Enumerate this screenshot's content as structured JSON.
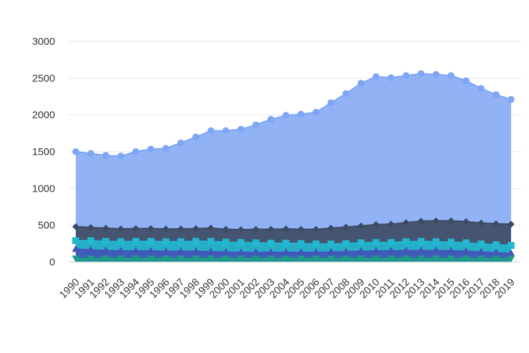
{
  "chart_data": {
    "type": "area",
    "stacked": false,
    "title": "",
    "xlabel": "",
    "ylabel": "",
    "ylim": [
      0,
      3000
    ],
    "yticks": [
      0,
      500,
      1000,
      1500,
      2000,
      2500,
      3000
    ],
    "grid": true,
    "legend": "none",
    "categories": [
      "1990",
      "1991",
      "1992",
      "1993",
      "1994",
      "1995",
      "1996",
      "1997",
      "1998",
      "1999",
      "2000",
      "2001",
      "2002",
      "2003",
      "2004",
      "2005",
      "2006",
      "2007",
      "2008",
      "2009",
      "2010",
      "2011",
      "2012",
      "2013",
      "2014",
      "2015",
      "2016",
      "2017",
      "2018",
      "2019"
    ],
    "series": [
      {
        "color": "#7ea6f5",
        "marker": "circle",
        "values": [
          1500,
          1475,
          1450,
          1440,
          1500,
          1535,
          1545,
          1620,
          1700,
          1785,
          1785,
          1805,
          1865,
          1940,
          1995,
          2010,
          2035,
          2165,
          2290,
          2430,
          2520,
          2505,
          2535,
          2560,
          2550,
          2535,
          2465,
          2360,
          2275,
          2210
        ]
      },
      {
        "color": "#3d4a63",
        "marker": "diamond",
        "values": [
          480,
          470,
          460,
          450,
          455,
          455,
          450,
          450,
          455,
          460,
          445,
          440,
          445,
          445,
          450,
          445,
          445,
          460,
          475,
          490,
          510,
          515,
          535,
          555,
          560,
          560,
          550,
          530,
          520,
          515
        ]
      },
      {
        "color": "#22b8cf",
        "marker": "square",
        "values": [
          290,
          290,
          280,
          275,
          280,
          280,
          275,
          275,
          280,
          280,
          270,
          265,
          260,
          255,
          255,
          250,
          245,
          245,
          250,
          260,
          265,
          265,
          275,
          280,
          275,
          270,
          260,
          245,
          235,
          225
        ]
      },
      {
        "color": "#4453b8",
        "marker": "triangle-up",
        "values": [
          175,
          165,
          155,
          150,
          150,
          150,
          145,
          145,
          145,
          140,
          135,
          130,
          130,
          130,
          130,
          130,
          130,
          135,
          140,
          145,
          150,
          150,
          155,
          155,
          155,
          150,
          145,
          135,
          125,
          115
        ]
      },
      {
        "color": "#1f9a8a",
        "marker": "triangle-down",
        "values": [
          50,
          50,
          50,
          50,
          50,
          50,
          50,
          50,
          50,
          50,
          50,
          50,
          50,
          50,
          50,
          50,
          50,
          50,
          50,
          50,
          50,
          50,
          50,
          50,
          50,
          50,
          50,
          50,
          50,
          50
        ]
      }
    ]
  }
}
